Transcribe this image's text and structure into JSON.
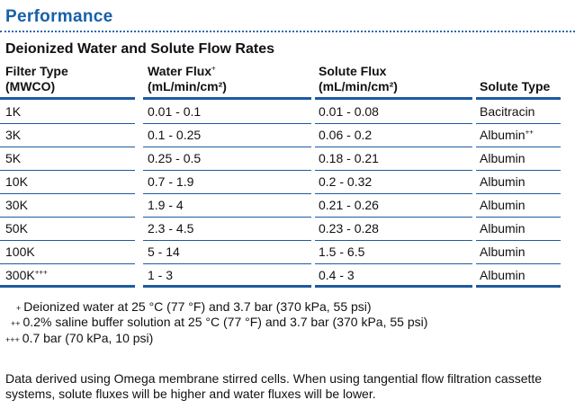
{
  "section_title": "Performance",
  "table_title": "Deionized Water and Solute Flow Rates",
  "columns": [
    {
      "line1": "Filter Type",
      "line2": "(MWCO)",
      "sup": ""
    },
    {
      "line1": "Water Flux",
      "line2": "(mL/min/cm²)",
      "sup": "+"
    },
    {
      "line1": "Solute Flux",
      "line2": "(mL/min/cm²)",
      "sup": ""
    },
    {
      "line1": "Solute Type",
      "line2": "",
      "sup": ""
    }
  ],
  "rows": [
    {
      "filter": "1K",
      "filter_sup": "",
      "water": "0.01 - 0.1",
      "solute": "0.01 - 0.08",
      "type": "Bacitracin",
      "type_sup": ""
    },
    {
      "filter": "3K",
      "filter_sup": "",
      "water": "0.1 - 0.25",
      "solute": "0.06 - 0.2",
      "type": "Albumin",
      "type_sup": "++"
    },
    {
      "filter": "5K",
      "filter_sup": "",
      "water": "0.25 - 0.5",
      "solute": "0.18 - 0.21",
      "type": "Albumin",
      "type_sup": ""
    },
    {
      "filter": "10K",
      "filter_sup": "",
      "water": "0.7 - 1.9",
      "solute": "0.2 - 0.32",
      "type": "Albumin",
      "type_sup": ""
    },
    {
      "filter": "30K",
      "filter_sup": "",
      "water": "1.9 - 4",
      "solute": "0.21 - 0.26",
      "type": "Albumin",
      "type_sup": ""
    },
    {
      "filter": "50K",
      "filter_sup": "",
      "water": "2.3 - 4.5",
      "solute": "0.23 - 0.28",
      "type": "Albumin",
      "type_sup": ""
    },
    {
      "filter": "100K",
      "filter_sup": "",
      "water": "5 - 14",
      "solute": "1.5 - 6.5",
      "type": "Albumin",
      "type_sup": ""
    },
    {
      "filter": "300K",
      "filter_sup": "+++",
      "water": "1 - 3",
      "solute": "0.4 - 3",
      "type": "Albumin",
      "type_sup": ""
    }
  ],
  "footnotes": [
    {
      "mark": "+",
      "text": "Deionized water at 25 °C (77 °F) and 3.7 bar (370 kPa, 55 psi)"
    },
    {
      "mark": "++",
      "text": "0.2% saline buffer solution at 25 °C (77 °F) and 3.7 bar (370 kPa, 55 psi)"
    },
    {
      "mark": "+++",
      "text": "0.7 bar (70 kPa, 10 psi)"
    }
  ],
  "note": "Data derived using Omega membrane stirred cells. When using tangential flow filtration cassette systems, solute fluxes will be higher and water fluxes will be lower.",
  "colors": {
    "accent": "#1760a8",
    "rule": "#1d5aa0",
    "text": "#111111"
  }
}
